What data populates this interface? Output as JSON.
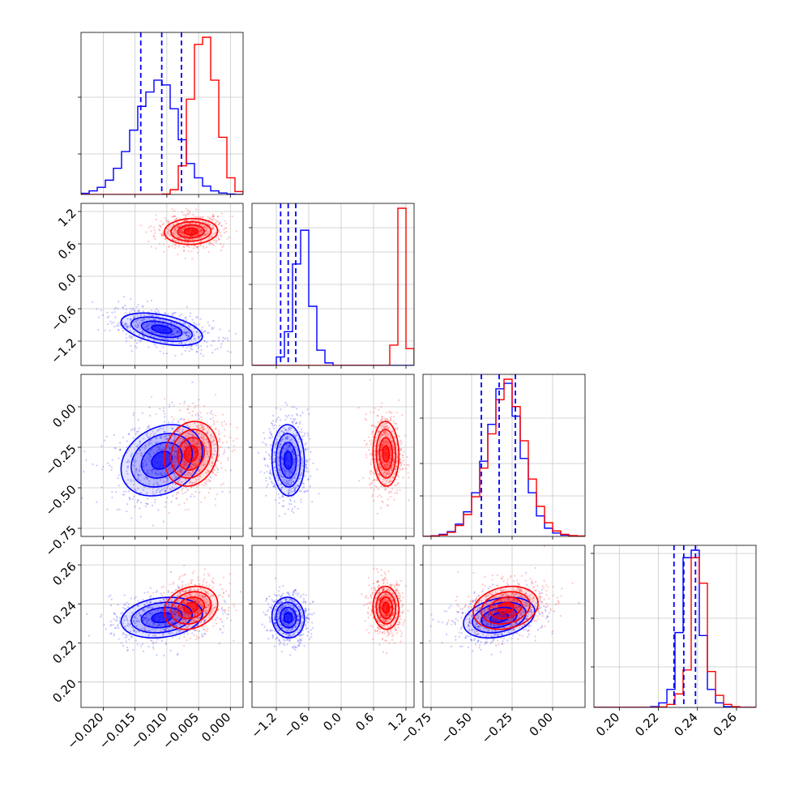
{
  "chart_data": {
    "type": "corner",
    "title": "",
    "grid": true,
    "parameters": [
      {
        "range": [
          -0.0235,
          0.002
        ],
        "ticks": [
          "−0.020",
          "−0.015",
          "−0.010",
          "−0.005",
          "0.000"
        ],
        "tick_values": [
          -0.02,
          -0.015,
          -0.01,
          -0.005,
          0.0
        ]
      },
      {
        "range": [
          -1.65,
          1.35
        ],
        "ticks": [
          "−1.2",
          "−0.6",
          "0.0",
          "0.6",
          "1.2"
        ],
        "tick_values": [
          -1.2,
          -0.6,
          0.0,
          0.6,
          1.2
        ]
      },
      {
        "range": [
          -0.8,
          0.2
        ],
        "ticks": [
          "−0.75",
          "−0.50",
          "−0.25",
          "0.00"
        ],
        "tick_values": [
          -0.75,
          -0.5,
          -0.25,
          0.0
        ]
      },
      {
        "range": [
          0.187,
          0.27
        ],
        "ticks": [
          "0.20",
          "0.22",
          "0.24",
          "0.26"
        ],
        "tick_values": [
          0.2,
          0.22,
          0.24,
          0.26
        ]
      }
    ],
    "series": [
      {
        "color": "#0000ff",
        "means": [
          -0.0108,
          -0.98,
          -0.33,
          0.233
        ],
        "sds": [
          0.0032,
          0.15,
          0.11,
          0.0052
        ],
        "correlations": {
          "1-0": -0.45,
          "2-0": 0.25,
          "2-1": -0.05,
          "3-0": 0.2,
          "3-1": -0.05,
          "3-2": 0.3
        },
        "quantiles": [
          [
            -0.0141,
            -0.0108,
            -0.0077
          ],
          [
            -1.12,
            -0.98,
            -0.84
          ],
          [
            -0.44,
            -0.33,
            -0.23
          ],
          [
            0.228,
            0.233,
            0.239
          ]
        ],
        "histograms": [
          [
            0.5,
            1.5,
            3,
            6,
            11,
            18,
            27,
            37,
            43,
            48,
            46,
            36,
            23,
            13,
            7,
            3.5,
            1.5,
            0.6,
            0.2,
            0
          ],
          [
            0,
            0,
            0,
            5,
            20,
            60,
            80,
            35,
            9,
            1.5,
            0,
            0,
            0,
            0,
            0,
            0,
            0,
            0,
            0,
            0
          ],
          [
            0,
            0.5,
            1.5,
            3.5,
            9,
            18,
            32,
            55,
            82,
            108,
            112,
            88,
            57,
            32,
            15,
            6,
            2.5,
            1,
            0.5,
            0
          ],
          [
            0,
            0,
            0,
            0,
            0,
            0,
            0,
            0.5,
            3,
            12,
            50,
            100,
            105,
            48,
            12,
            3,
            0.5,
            0,
            0,
            0
          ]
        ]
      },
      {
        "color": "#ff0000",
        "means": [
          -0.0062,
          0.83,
          -0.29,
          0.238
        ],
        "sds": [
          0.0021,
          0.12,
          0.1,
          0.0055
        ],
        "correlations": {
          "1-0": 0.05,
          "2-0": 0.15,
          "2-1": -0.05,
          "3-0": 0.2,
          "3-1": -0.05,
          "3-2": 0.2
        },
        "quantiles": [],
        "histograms": [
          [
            0,
            0,
            0,
            0,
            0,
            0,
            0,
            0,
            0,
            0,
            0.2,
            2,
            12,
            40,
            63,
            66,
            48,
            24,
            7,
            1.2
          ],
          [
            0,
            0,
            0,
            0,
            0,
            0,
            0,
            0,
            0,
            0,
            0,
            0,
            0,
            0,
            0,
            0,
            0,
            12,
            93,
            10
          ],
          [
            0,
            0.3,
            1,
            3,
            8,
            16,
            29,
            50,
            75,
            100,
            115,
            95,
            70,
            42,
            22,
            10,
            4,
            1.5,
            0.6,
            0.3
          ],
          [
            0,
            0,
            0,
            0,
            0,
            0,
            0,
            0,
            0.3,
            2,
            9,
            25,
            100,
            83,
            24,
            8,
            2,
            0.5,
            0,
            0
          ]
        ]
      }
    ],
    "histogram_y_ticks": [
      [
        0.25,
        0.6
      ],
      [
        0.15,
        0.35,
        0.5,
        0.7,
        0.85
      ],
      [
        0.25,
        0.45,
        0.73
      ],
      [
        0.25,
        0.55,
        0.95
      ]
    ]
  }
}
